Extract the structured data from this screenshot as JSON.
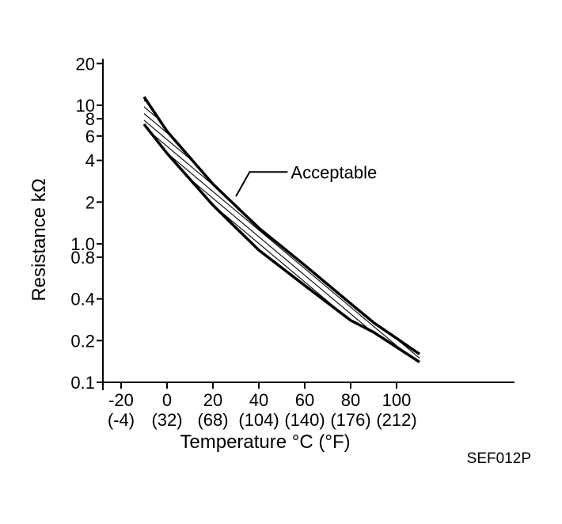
{
  "chart_data": {
    "type": "area",
    "title": "",
    "xlabel": "Temperature °C (°F)",
    "ylabel": "Resistance kΩ",
    "y_scale": "log",
    "x_range": [
      -25,
      137
    ],
    "ylim": [
      0.1,
      20
    ],
    "grid": false,
    "x_ticks": [
      {
        "c": "-20",
        "f": "(-4)"
      },
      {
        "c": "0",
        "f": "(32)"
      },
      {
        "c": "20",
        "f": "(68)"
      },
      {
        "c": "40",
        "f": "(104)"
      },
      {
        "c": "60",
        "f": "(140)"
      },
      {
        "c": "80",
        "f": "(176)"
      },
      {
        "c": "100",
        "f": "(212)"
      }
    ],
    "y_ticks": [
      "20",
      "10",
      "8",
      "6",
      "4",
      "2",
      "1.0",
      "0.8",
      "0.4",
      "0.2",
      "0.1"
    ],
    "series": [
      {
        "name": "Acceptable",
        "x": [
          -10,
          0,
          20,
          40,
          60,
          80,
          90,
          110
        ],
        "upper": [
          11.5,
          6.5,
          2.7,
          1.3,
          0.7,
          0.37,
          0.27,
          0.16
        ],
        "lower": [
          7.3,
          4.5,
          1.9,
          0.9,
          0.5,
          0.28,
          0.23,
          0.14
        ]
      }
    ],
    "annotations": [
      {
        "text": "Acceptable",
        "x": 36,
        "y": 3.3
      }
    ]
  },
  "figure_code": "SEF012P"
}
